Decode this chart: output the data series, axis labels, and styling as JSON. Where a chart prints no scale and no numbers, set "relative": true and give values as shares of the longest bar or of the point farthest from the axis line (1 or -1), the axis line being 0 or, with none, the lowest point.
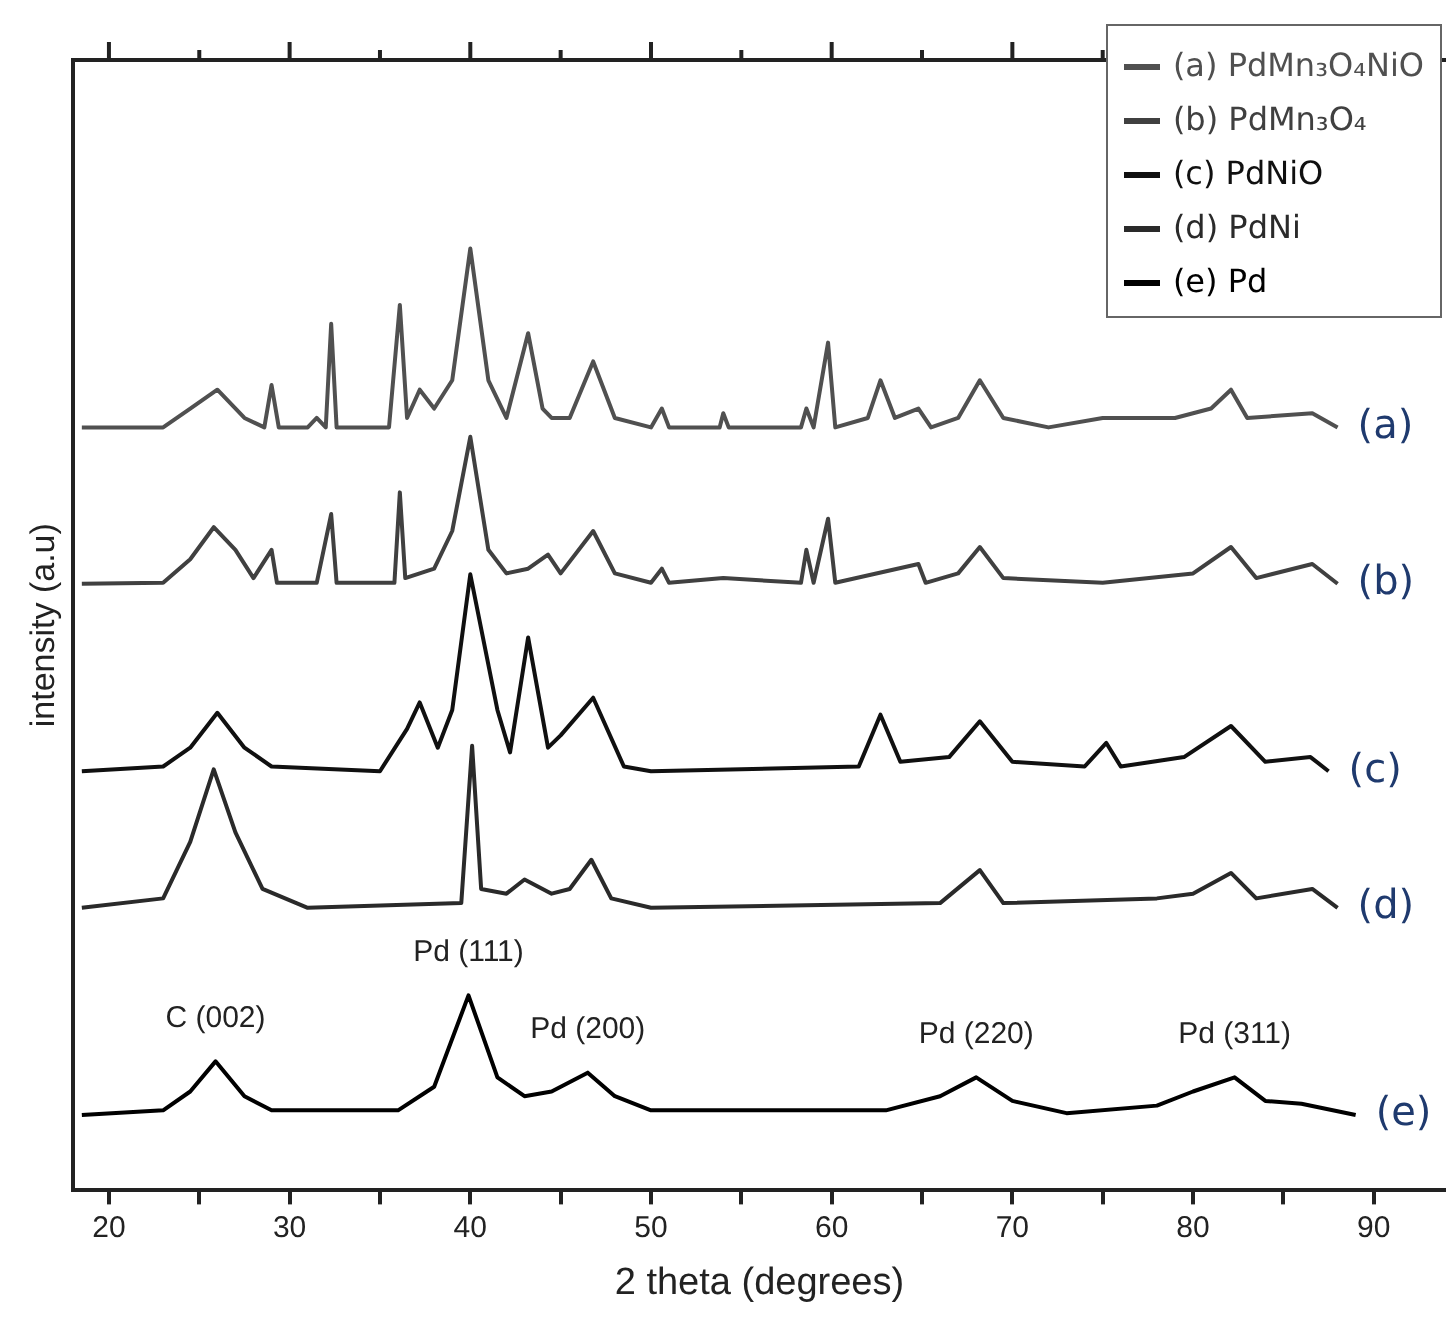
{
  "chart_data": {
    "type": "line",
    "relative": true,
    "xlabel": "2 theta (degrees)",
    "ylabel": "intensity (a.u)",
    "xlim": [
      18,
      94
    ],
    "xticks": [
      20,
      {
        "value": 25,
        "label": null
      },
      30,
      {
        "value": 35,
        "label": null
      },
      40,
      {
        "value": 45,
        "label": null
      },
      50,
      {
        "value": 55,
        "label": null
      },
      60,
      {
        "value": 65,
        "label": null
      },
      70,
      {
        "value": 75,
        "label": null
      },
      80,
      {
        "value": 85,
        "label": null
      },
      90
    ],
    "grid": false,
    "legend": "top right",
    "marker": "none",
    "line_style": "solid",
    "series": [
      {
        "name": "(a) PdMn₃O₄NiO",
        "color": "#505050",
        "x": [
          18.5,
          23,
          24.5,
          26,
          27.5,
          28.6,
          29,
          29.4,
          31,
          31.5,
          32,
          32.3,
          32.6,
          35.5,
          36.1,
          36.5,
          37.2,
          38,
          39,
          40,
          41,
          42,
          43.2,
          44,
          44.5,
          45.5,
          46.8,
          48,
          50,
          50.6,
          51,
          53.8,
          54,
          54.3,
          58.3,
          58.6,
          59,
          59.8,
          60.2,
          62,
          62.7,
          63.5,
          64.8,
          65.5,
          67,
          68.2,
          69.5,
          72,
          75,
          79,
          81,
          82.1,
          83,
          86.6,
          88
        ],
        "values": [
          0.81,
          0.81,
          0.83,
          0.85,
          0.82,
          0.81,
          0.855,
          0.81,
          0.81,
          0.82,
          0.81,
          0.92,
          0.81,
          0.81,
          0.94,
          0.82,
          0.85,
          0.83,
          0.86,
          1.0,
          0.86,
          0.82,
          0.91,
          0.83,
          0.82,
          0.82,
          0.88,
          0.82,
          0.81,
          0.83,
          0.81,
          0.81,
          0.825,
          0.81,
          0.81,
          0.83,
          0.81,
          0.9,
          0.81,
          0.82,
          0.86,
          0.82,
          0.83,
          0.81,
          0.82,
          0.86,
          0.82,
          0.81,
          0.82,
          0.82,
          0.83,
          0.85,
          0.82,
          0.825,
          0.81
        ]
      },
      {
        "name": "(b) PdMn₃O₄",
        "color": "#404040",
        "x": [
          18.5,
          23,
          24.5,
          25.8,
          27,
          28,
          29,
          29.3,
          31.5,
          32.3,
          32.6,
          35.8,
          36.1,
          36.4,
          38,
          39,
          40,
          41,
          42,
          43.2,
          44.3,
          45,
          46.8,
          48,
          50,
          50.6,
          51,
          54,
          58.3,
          58.6,
          59,
          59.8,
          60.2,
          64.8,
          65.2,
          67,
          68.2,
          69.5,
          75,
          80,
          82.1,
          83.5,
          86.6,
          88
        ],
        "values": [
          0.644,
          0.645,
          0.67,
          0.704,
          0.68,
          0.65,
          0.68,
          0.645,
          0.645,
          0.718,
          0.645,
          0.645,
          0.741,
          0.65,
          0.66,
          0.7,
          0.8,
          0.68,
          0.655,
          0.66,
          0.675,
          0.655,
          0.7,
          0.655,
          0.645,
          0.66,
          0.645,
          0.65,
          0.645,
          0.68,
          0.645,
          0.713,
          0.645,
          0.665,
          0.645,
          0.655,
          0.683,
          0.65,
          0.645,
          0.655,
          0.683,
          0.65,
          0.665,
          0.644
        ]
      },
      {
        "name": "(c) PdNiO",
        "color": "#101010",
        "x": [
          18.5,
          23,
          24.5,
          26,
          27.5,
          29,
          35,
          36.5,
          37.2,
          38.2,
          39,
          40,
          41.5,
          42.2,
          43.2,
          44.3,
          45,
          46.8,
          48.5,
          50,
          61.5,
          62.7,
          63.8,
          66.5,
          68.2,
          70,
          74,
          75.2,
          76,
          79.5,
          82.1,
          84,
          86.5,
          87.5
        ],
        "values": [
          0.445,
          0.45,
          0.47,
          0.507,
          0.47,
          0.45,
          0.445,
          0.49,
          0.518,
          0.47,
          0.51,
          0.654,
          0.51,
          0.465,
          0.587,
          0.47,
          0.483,
          0.523,
          0.45,
          0.445,
          0.45,
          0.505,
          0.455,
          0.46,
          0.498,
          0.455,
          0.45,
          0.475,
          0.45,
          0.46,
          0.493,
          0.455,
          0.46,
          0.445
        ]
      },
      {
        "name": "(d) PdNi",
        "color": "#2a2a2a",
        "x": [
          18.5,
          23,
          24.5,
          25.8,
          27,
          28.5,
          31,
          39.5,
          40.1,
          40.6,
          42,
          43,
          44.5,
          45.5,
          46.7,
          47.8,
          50,
          66,
          68.2,
          69.5,
          78,
          80,
          82.1,
          83.5,
          86.6,
          88
        ],
        "values": [
          0.3,
          0.31,
          0.37,
          0.447,
          0.38,
          0.32,
          0.3,
          0.305,
          0.472,
          0.32,
          0.315,
          0.33,
          0.315,
          0.32,
          0.351,
          0.31,
          0.3,
          0.305,
          0.34,
          0.305,
          0.31,
          0.315,
          0.337,
          0.31,
          0.32,
          0.3
        ]
      },
      {
        "name": "(e) Pd",
        "color": "#000000",
        "x": [
          18.5,
          23,
          24.5,
          25.9,
          27.5,
          29,
          36,
          38,
          39.9,
          41.5,
          43,
          44.5,
          46.5,
          48,
          50,
          63,
          66,
          68,
          70,
          73,
          78,
          80,
          82.3,
          84,
          86,
          89
        ],
        "values": [
          0.08,
          0.085,
          0.105,
          0.137,
          0.1,
          0.085,
          0.085,
          0.11,
          0.207,
          0.12,
          0.1,
          0.105,
          0.125,
          0.1,
          0.085,
          0.085,
          0.1,
          0.12,
          0.095,
          0.082,
          0.09,
          0.105,
          0.12,
          0.095,
          0.092,
          0.08
        ]
      }
    ],
    "annotations": [
      {
        "text": "C (002)",
        "x": 25.9,
        "y": 0.137
      },
      {
        "text": "Pd (111)",
        "x": 39.9,
        "y": 0.207
      },
      {
        "text": "Pd (200)",
        "x": 46.5,
        "y": 0.125
      },
      {
        "text": "Pd (220)",
        "x": 68,
        "y": 0.12
      },
      {
        "text": "Pd (311)",
        "x": 82.3,
        "y": 0.12
      },
      {
        "text": "(a)",
        "x": 88,
        "y": 0.81
      },
      {
        "text": "(b)",
        "x": 88,
        "y": 0.644
      },
      {
        "text": "(c)",
        "x": 87.5,
        "y": 0.445
      },
      {
        "text": "(d)",
        "x": 88,
        "y": 0.3
      },
      {
        "text": "(e)",
        "x": 89,
        "y": 0.08
      }
    ]
  }
}
